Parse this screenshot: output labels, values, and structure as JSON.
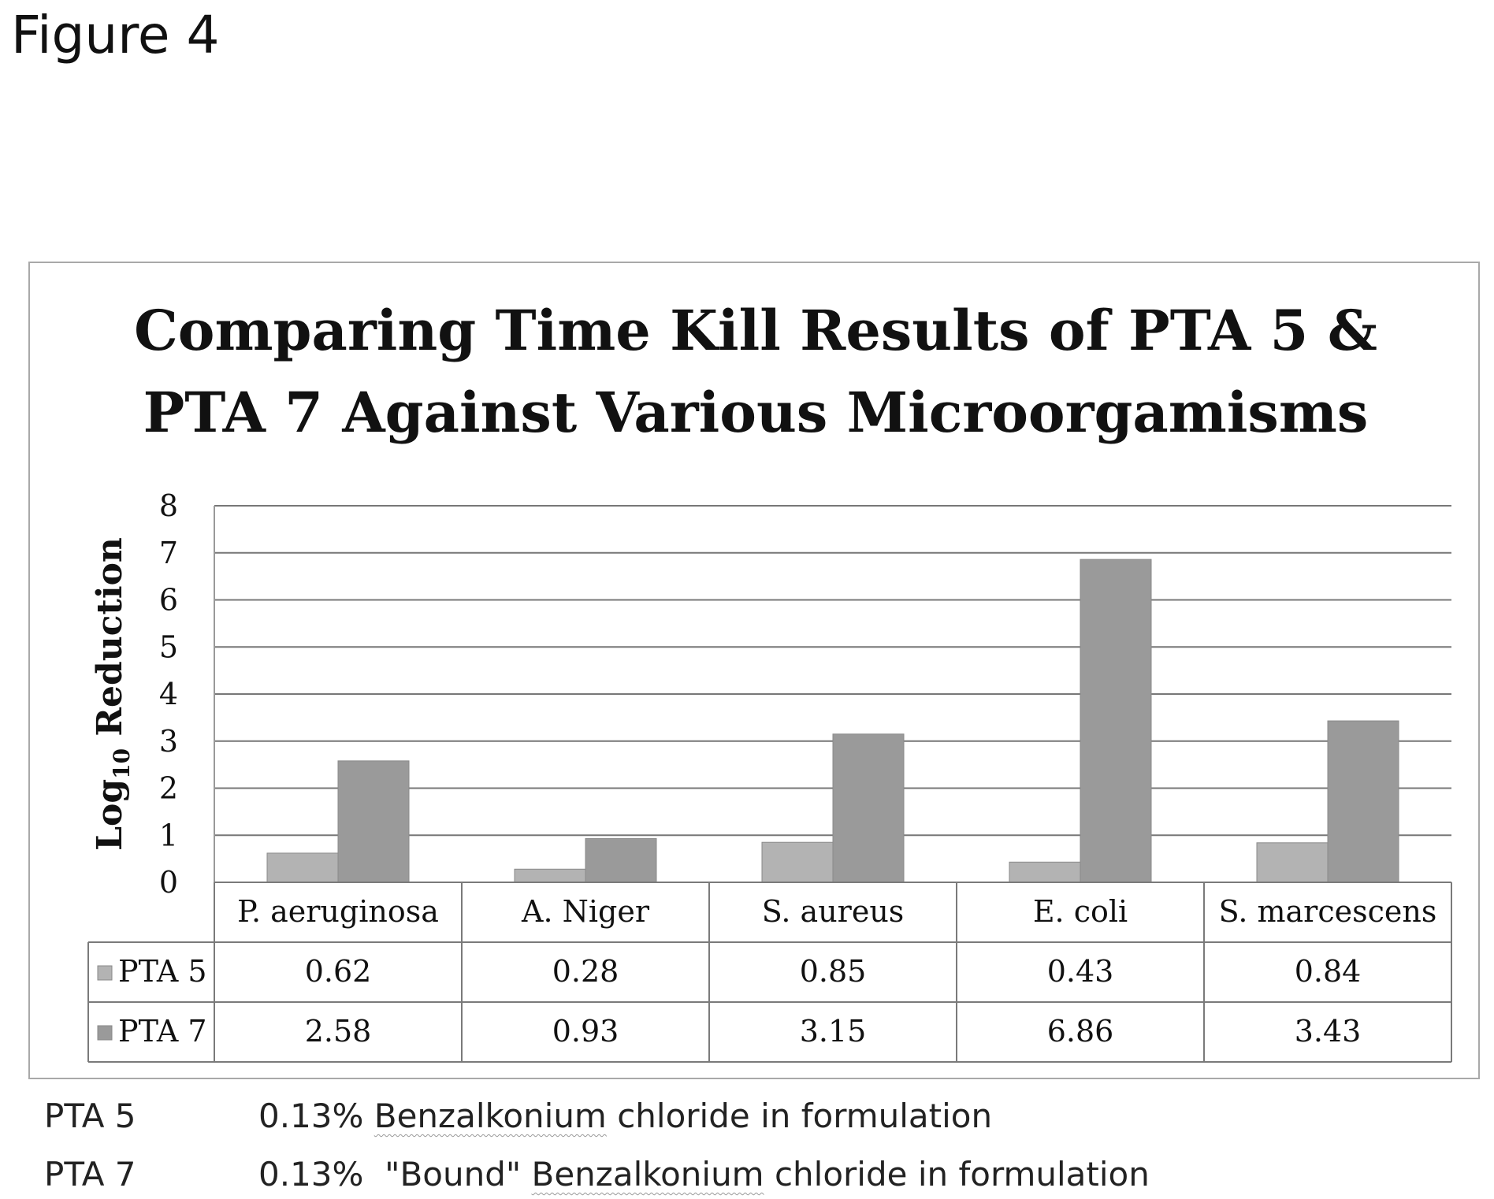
{
  "figure_label": "Figure 4",
  "chart_data": {
    "type": "bar",
    "title_lines": [
      "Comparing Time Kill Results of PTA 5 &",
      "PTA 7 Against Various Microorgamisms"
    ],
    "ylabel": "Log10 Reduction",
    "ylim": [
      0,
      8
    ],
    "yticks": [
      0,
      1,
      2,
      3,
      4,
      5,
      6,
      7,
      8
    ],
    "grid": true,
    "legend": "data-table",
    "categories": [
      "P. aeruginosa",
      "A. Niger",
      "S. aureus",
      "E. coli",
      "S. marcescens"
    ],
    "series": [
      {
        "name": "PTA 5",
        "values": [
          0.62,
          0.28,
          0.85,
          0.43,
          0.84
        ],
        "labels": [
          "0.62",
          "0.28",
          "0.85",
          "0.43",
          "0.84"
        ],
        "color": "#b3b3b3"
      },
      {
        "name": "PTA 7",
        "values": [
          2.58,
          0.93,
          3.15,
          6.86,
          3.43
        ],
        "labels": [
          "2.58",
          "0.93",
          "3.15",
          "6.86",
          "3.43"
        ],
        "color": "#9a9a9a"
      }
    ]
  },
  "notes": [
    {
      "term": "PTA 5",
      "desc_prefix": "0.13% ",
      "desc_underlined": "Benzalkonium",
      "desc_suffix": " chloride in formulation"
    },
    {
      "term": "PTA 7",
      "desc_prefix": "0.13%  \"Bound\" ",
      "desc_underlined": "Benzalkonium",
      "desc_suffix": " chloride in formulation"
    }
  ]
}
